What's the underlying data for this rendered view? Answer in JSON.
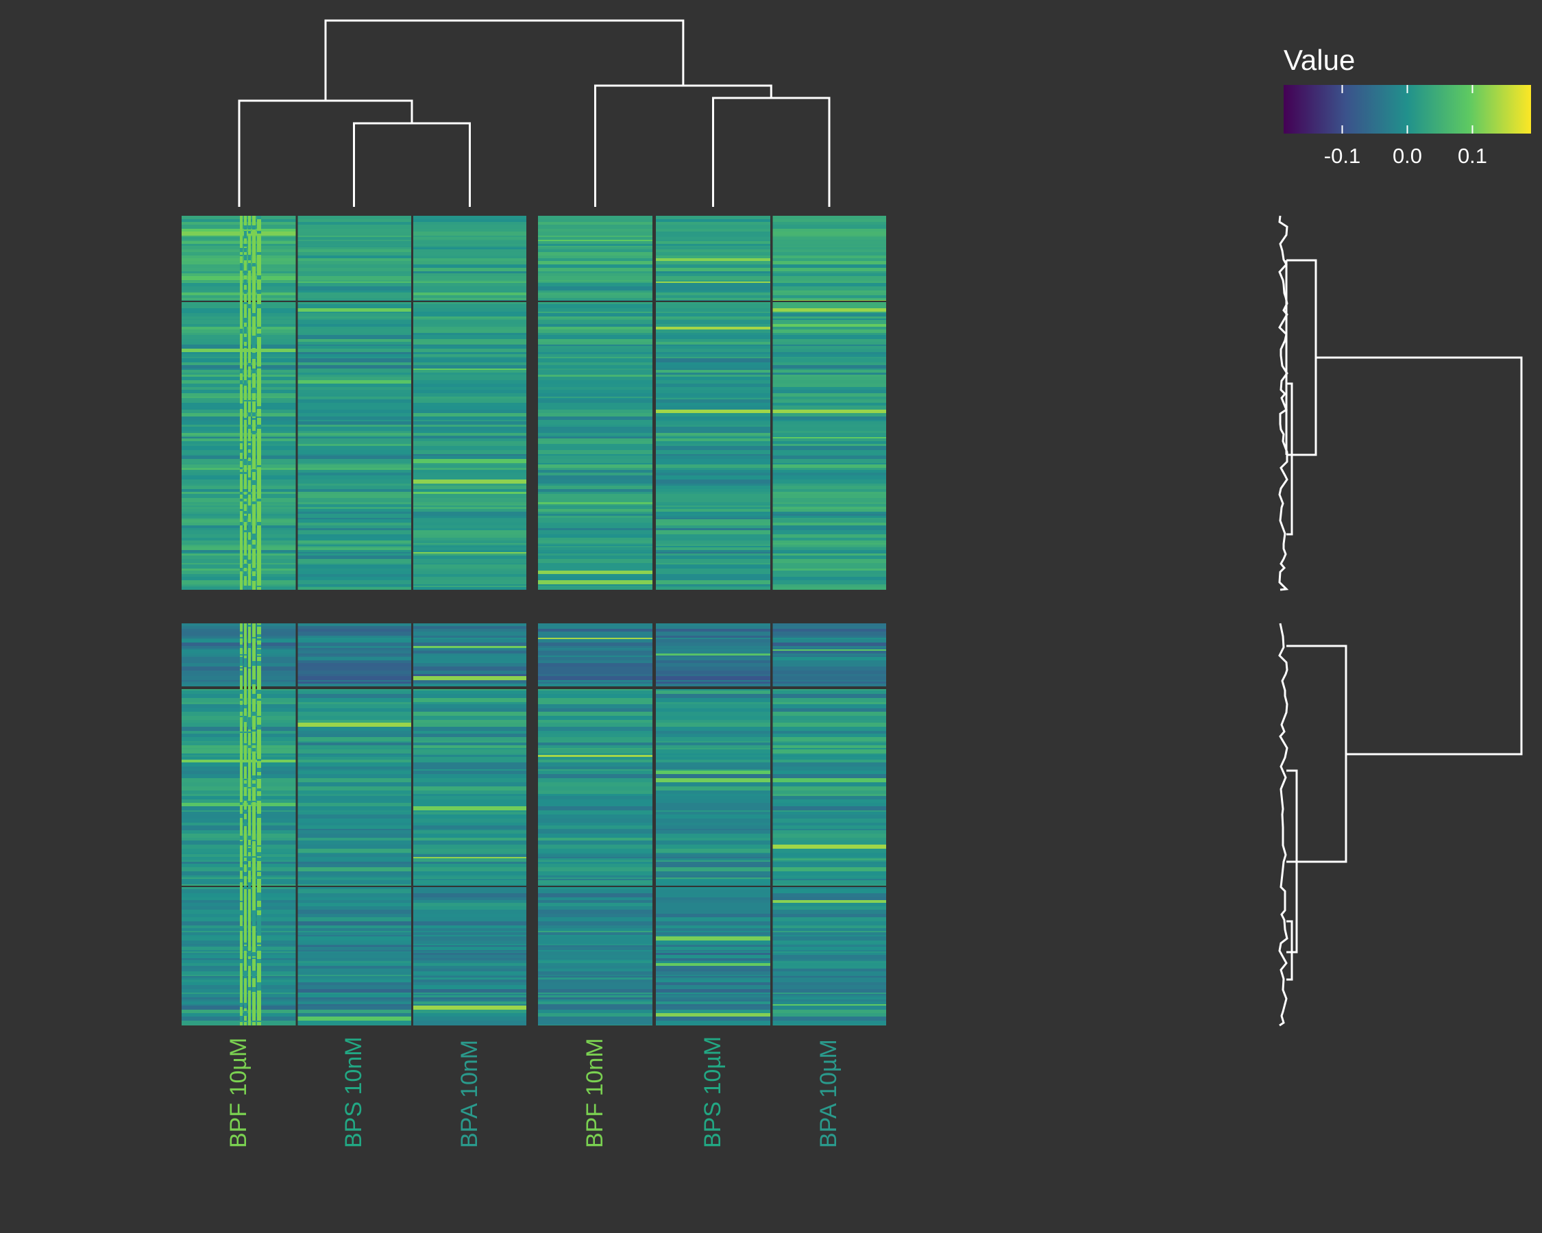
{
  "chart_data": {
    "type": "heatmap",
    "legend": {
      "title": "Value",
      "ticks": [
        {
          "value": -0.1,
          "label": "-0.1"
        },
        {
          "value": 0.0,
          "label": "0.0"
        },
        {
          "value": 0.1,
          "label": "0.1"
        }
      ],
      "range": [
        -0.19,
        0.19
      ],
      "colors": [
        "#440154",
        "#3b528b",
        "#21918c",
        "#5ec962",
        "#fde725"
      ],
      "placement": "top-right"
    },
    "columns": [
      {
        "label": "BPF 10µM",
        "group": 1,
        "color": "#7ad151",
        "mean": 0.02
      },
      {
        "label": "BPS 10nM",
        "group": 1,
        "color": "#22a884",
        "mean": 0.005
      },
      {
        "label": "BPA 10nM",
        "group": 1,
        "color": "#2a9a8c",
        "mean": 0.01
      },
      {
        "label": "BPF 10nM",
        "group": 2,
        "color": "#7ad151",
        "mean": 0.01
      },
      {
        "label": "BPS 10µM",
        "group": 2,
        "color": "#22a884",
        "mean": 0.0
      },
      {
        "label": "BPA 10µM",
        "group": 2,
        "color": "#2a9a8c",
        "mean": 0.015
      }
    ],
    "row_clusters": [
      {
        "name": "upper",
        "blocks": [
          0.025,
          0.008
        ]
      },
      {
        "name": "lower",
        "blocks": [
          -0.045,
          -0.005,
          -0.02
        ]
      }
    ],
    "column_dendrogram": true,
    "row_dendrogram": true,
    "row_annotation_colors": [
      "#7ad151",
      "#2a9a8c"
    ],
    "colors": {
      "background": "#333333",
      "dendrogram": "#ffffff",
      "separator": "#333333"
    }
  }
}
